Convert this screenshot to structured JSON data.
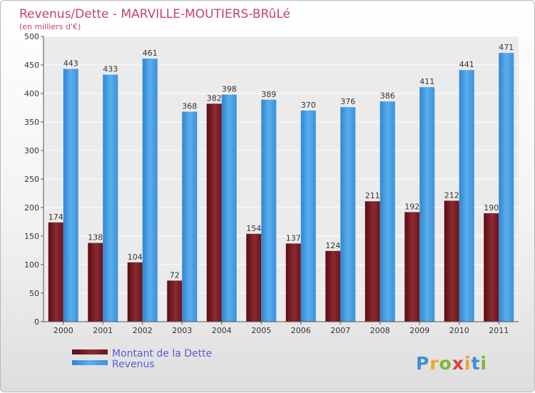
{
  "chart_data": {
    "type": "bar",
    "title": "Revenus/Dette - MARVILLE-MOUTIERS-BRûLé",
    "subtitle": "(en milliers d'€)",
    "categories": [
      "2000",
      "2001",
      "2002",
      "2003",
      "2004",
      "2005",
      "2006",
      "2007",
      "2008",
      "2009",
      "2010",
      "2011"
    ],
    "series": [
      {
        "name": "Montant de la Dette",
        "color": "#7a1e24",
        "values": [
          174,
          138,
          104,
          72,
          382,
          154,
          137,
          124,
          211,
          192,
          212,
          190
        ]
      },
      {
        "name": "Revenus",
        "color": "#3d96e0",
        "values": [
          443,
          433,
          461,
          368,
          398,
          389,
          370,
          376,
          386,
          411,
          441,
          471
        ]
      }
    ],
    "ylim": [
      0,
      500
    ],
    "yticks": [
      0,
      50,
      100,
      150,
      200,
      250,
      300,
      350,
      400,
      450,
      500
    ],
    "grid": true,
    "legend_position": "bottom-left"
  },
  "logo": {
    "text": "Proxiti"
  }
}
